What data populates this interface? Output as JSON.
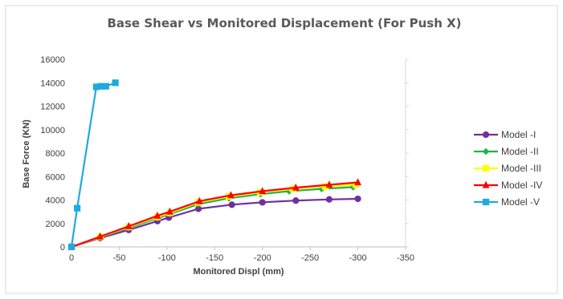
{
  "chart_data": {
    "type": "line",
    "title": "Base Shear vs Monitored Displacement (For Push X)",
    "xlabel": "Monitored Displ (mm)",
    "ylabel": "Base Force (KN)",
    "xlim": [
      0,
      -350
    ],
    "ylim": [
      0,
      16000
    ],
    "x_ticks": [
      "0",
      "-50",
      "-100",
      "-150",
      "-200",
      "-250",
      "-300",
      "-350"
    ],
    "y_ticks": [
      "0",
      "2000",
      "4000",
      "6000",
      "8000",
      "10000",
      "12000",
      "14000",
      "16000"
    ],
    "legend_position": "right",
    "grid": false,
    "series": [
      {
        "name": "Model -I",
        "color": "#7030A0",
        "marker": "circle",
        "x": [
          0,
          -30,
          -60,
          -90,
          -102,
          -133,
          -168,
          -200,
          -235,
          -270,
          -300
        ],
        "y": [
          0,
          750,
          1450,
          2200,
          2500,
          3250,
          3600,
          3800,
          3950,
          4050,
          4100
        ]
      },
      {
        "name": "Model -II",
        "color": "#22B14C",
        "marker": "diamond",
        "x": [
          0,
          -30,
          -60,
          -90,
          -103,
          -133,
          -165,
          -198,
          -228,
          -262,
          -295
        ],
        "y": [
          0,
          820,
          1620,
          2450,
          2800,
          3650,
          4150,
          4500,
          4750,
          4950,
          5100
        ]
      },
      {
        "name": "Model -III",
        "color": "#FFFF00",
        "marker": "square",
        "x": [
          0,
          -30,
          -60,
          -90,
          -103,
          -133,
          -165,
          -198,
          -232,
          -266,
          -298
        ],
        "y": [
          0,
          850,
          1700,
          2550,
          2900,
          3800,
          4300,
          4650,
          4950,
          5150,
          5300
        ]
      },
      {
        "name": "Model -IV",
        "color": "#FF0000",
        "marker": "triangle",
        "x": [
          0,
          -30,
          -60,
          -90,
          -103,
          -134,
          -167,
          -200,
          -235,
          -270,
          -300
        ],
        "y": [
          0,
          880,
          1760,
          2650,
          3000,
          3900,
          4400,
          4750,
          5050,
          5300,
          5500
        ]
      },
      {
        "name": "Model -V",
        "color": "#1FA9E1",
        "marker": "square",
        "x": [
          0,
          -6,
          -26,
          -31,
          -36,
          -46
        ],
        "y": [
          0,
          3300,
          13650,
          13700,
          13700,
          14000
        ]
      }
    ]
  }
}
